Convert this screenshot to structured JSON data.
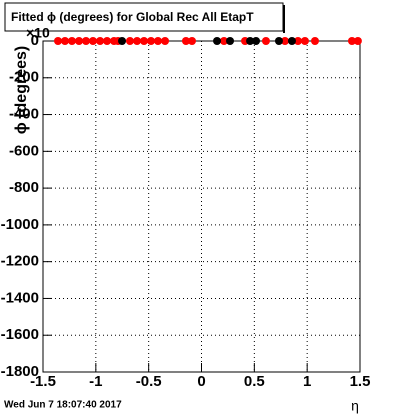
{
  "chart_data": {
    "type": "scatter",
    "title": "Fitted ϕ (degrees) for Global Rec All EtapT",
    "x_label": "η",
    "y_label": "ϕ (degrees)",
    "y_exponent": "×10",
    "timestamp": "Wed Jun  7 18:07:40 2017",
    "xlim": [
      -1.5,
      1.5
    ],
    "ylim": [
      -1800,
      0
    ],
    "xticks": [
      -1.5,
      -1,
      -0.5,
      0,
      0.5,
      1,
      1.5
    ],
    "yticks": [
      0,
      {
        "value": -200,
        "label": "-200"
      },
      {
        "value": -400,
        "label": "-400"
      },
      {
        "value": -600,
        "label": "-600"
      },
      {
        "value": -800,
        "label": "-800"
      },
      {
        "value": -1000,
        "label": "-1000"
      },
      {
        "value": -1200,
        "label": "-1200"
      },
      {
        "value": -1400,
        "label": "-1400"
      },
      {
        "value": -1600,
        "label": "-1600"
      },
      {
        "value": -1800,
        "label": "-1800"
      }
    ],
    "grid": true,
    "series": [
      {
        "name": "red",
        "color": "#ff0000",
        "x": [
          -1.358,
          -1.292,
          -1.226,
          -1.159,
          -1.093,
          -1.027,
          -0.96,
          -0.894,
          -0.828,
          -0.79,
          -0.677,
          -0.61,
          -0.544,
          -0.478,
          -0.412,
          -0.345,
          -0.147,
          -0.09,
          0.213,
          0.412,
          0.61,
          0.79,
          0.913,
          0.979,
          1.074,
          1.424,
          1.48
        ],
        "values": [
          0,
          0,
          0,
          0,
          0,
          0,
          0,
          0,
          0,
          0,
          0,
          0,
          0,
          0,
          0,
          0,
          0,
          0,
          0,
          0,
          0,
          0,
          0,
          0,
          0,
          0,
          0
        ]
      },
      {
        "name": "black",
        "color": "#000000",
        "x": [
          -0.752,
          0.147,
          0.27,
          0.46,
          0.516,
          0.733,
          0.856
        ],
        "values": [
          0,
          0,
          0,
          0,
          0,
          0,
          0
        ]
      }
    ]
  }
}
